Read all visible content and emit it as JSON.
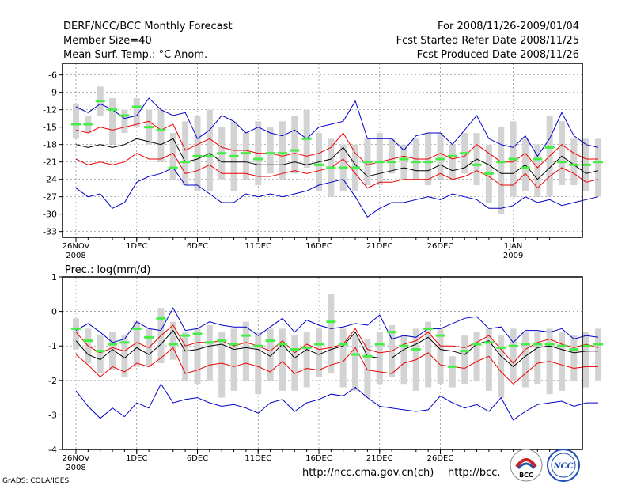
{
  "header": {
    "line1_left": "DERF/NCC/BCC Monthly Forecast",
    "line2_left": "Member Size=40",
    "line3_left": "Mean Surf. Temp.: °C Anom.",
    "line1_right": "For 2008/11/26-2009/01/04",
    "line2_right": "Fcst Started Refer Date 2008/11/25",
    "line3_right": "Fcst Produced Date 2008/11/26"
  },
  "footer": {
    "credit": "GrADS: COLA/IGES",
    "url1": "http://ncc.cma.gov.cn(ch)",
    "url2": "http://bcc.",
    "logo1_label": "BCC",
    "logo2_label": "NCC"
  },
  "colors": {
    "box": "#d3d3d3",
    "mean": "#44ee44",
    "median": "#000000",
    "quartile": "#ee0000",
    "extreme": "#0000cc",
    "grid": "#888888"
  },
  "chart_data": [
    {
      "type": "line",
      "title": "Mean Surf. Temp.: °C Anom.",
      "ylim": [
        -34,
        -4
      ],
      "yticks": [
        -6,
        -9,
        -12,
        -15,
        -18,
        -21,
        -24,
        -27,
        -30,
        -33
      ],
      "xtick_labels": [
        {
          "day": 1,
          "text": "26NOV",
          "sub": "2008"
        },
        {
          "day": 6,
          "text": "1DEC",
          "sub": ""
        },
        {
          "day": 11,
          "text": "6DEC",
          "sub": ""
        },
        {
          "day": 16,
          "text": "11DEC",
          "sub": ""
        },
        {
          "day": 21,
          "text": "16DEC",
          "sub": ""
        },
        {
          "day": 26,
          "text": "21DEC",
          "sub": ""
        },
        {
          "day": 31,
          "text": "26DEC",
          "sub": ""
        },
        {
          "day": 37,
          "text": "1JAN",
          "sub": "2009"
        }
      ],
      "x_days": 40,
      "series": [
        {
          "name": "upper-extreme",
          "values": [
            -11.5,
            -12.5,
            -11,
            -12,
            -13.5,
            -13,
            -10,
            -12,
            -13,
            -12.5,
            -17,
            -15.5,
            -13,
            -14,
            -16,
            -15,
            -16,
            -16.5,
            -15.5,
            -17,
            -15,
            -14.5,
            -14,
            -10.5,
            -17,
            -17,
            -17,
            -19,
            -16.5,
            -16,
            -16,
            -18,
            -15.5,
            -13,
            -17,
            -18,
            -18.5,
            -16.5,
            -20,
            -17,
            -12.5,
            -16.5,
            -18,
            -18.5
          ]
        },
        {
          "name": "upper-quartile",
          "values": [
            -15.5,
            -16,
            -15,
            -15.5,
            -15,
            -14.5,
            -14,
            -15.5,
            -14.5,
            -19,
            -18,
            -17,
            -18.5,
            -19,
            -19,
            -19.5,
            -19.5,
            -20,
            -19.5,
            -20,
            -19.5,
            -18.5,
            -16,
            -19.5,
            -21.5,
            -21,
            -20.5,
            -20,
            -20.5,
            -20.5,
            -19.5,
            -20.5,
            -20,
            -18,
            -19.5,
            -21,
            -21,
            -19.5,
            -22,
            -20,
            -18,
            -19.5,
            -20.5,
            -20.5
          ]
        },
        {
          "name": "median",
          "values": [
            -18,
            -18.5,
            -18,
            -18.5,
            -18,
            -17,
            -17.5,
            -18,
            -17,
            -21,
            -20.5,
            -19.5,
            -21,
            -21,
            -21,
            -21.5,
            -21.5,
            -21.5,
            -21,
            -21.5,
            -21,
            -20.5,
            -18.5,
            -21.5,
            -23.5,
            -23,
            -22.5,
            -22,
            -22.5,
            -22.5,
            -21.5,
            -22.5,
            -22,
            -20.5,
            -21.5,
            -23,
            -23,
            -21.5,
            -24,
            -22,
            -20,
            -21.5,
            -23,
            -22.5
          ]
        },
        {
          "name": "lower-quartile",
          "values": [
            -20.5,
            -21.5,
            -21,
            -21.5,
            -21,
            -19.5,
            -20.5,
            -20.5,
            -19.5,
            -23,
            -22.5,
            -21.5,
            -23,
            -23,
            -23,
            -23.5,
            -23.5,
            -23,
            -22.5,
            -23,
            -22.5,
            -22,
            -20.5,
            -23,
            -25.5,
            -24.5,
            -24.5,
            -24,
            -24,
            -24,
            -23,
            -24,
            -23.5,
            -22.5,
            -23.5,
            -25,
            -25,
            -23,
            -25.5,
            -23.5,
            -22,
            -23,
            -24.5,
            -24
          ]
        },
        {
          "name": "lower-extreme",
          "values": [
            -25.5,
            -27,
            -26.5,
            -29,
            -28,
            -24.5,
            -23.5,
            -23,
            -22,
            -25,
            -25,
            -26.5,
            -28,
            -28,
            -26.5,
            -27,
            -26.5,
            -27,
            -26.5,
            -26,
            -25,
            -24.5,
            -24,
            -27,
            -30.5,
            -29,
            -28,
            -28,
            -27.5,
            -27,
            -27.5,
            -26.5,
            -27,
            -27.5,
            -29,
            -29,
            -28.5,
            -27,
            -28,
            -27.5,
            -28.5,
            -28,
            -27.5,
            -27
          ]
        },
        {
          "name": "mean",
          "values": [
            -14.5,
            -14.5,
            -10.5,
            -12,
            -13,
            -11.5,
            -15,
            -15.5,
            -22,
            -21,
            -20,
            -20,
            -19.5,
            -20,
            -19.5,
            -20.5,
            -19.5,
            -19.5,
            -19,
            -17,
            -21.5,
            -22,
            -22,
            -22,
            -21,
            -21,
            -21,
            -20.5,
            -21,
            -21,
            -20.5,
            -20,
            -19.5,
            -21.5,
            -23,
            -21,
            -20.5,
            -22,
            -20.5,
            -18.5,
            -21,
            -21.5,
            -21.5,
            -21
          ]
        },
        {
          "name": "box-top",
          "values": [
            -11,
            -13,
            -8,
            -10,
            -12,
            -10,
            -12,
            -12,
            -16,
            -14,
            -13,
            -12,
            -15,
            -14,
            -16,
            -14,
            -15,
            -14,
            -13,
            -12,
            -16,
            -17,
            -18,
            -18,
            -17,
            -16,
            -17,
            -18,
            -17,
            -16,
            -16,
            -18,
            -16,
            -16,
            -18,
            -15,
            -14,
            -17,
            -18,
            -13,
            -14,
            -17,
            -17,
            -17
          ]
        },
        {
          "name": "box-bottom",
          "values": [
            -17,
            -16,
            -13,
            -18,
            -16,
            -15,
            -18,
            -21,
            -24,
            -25,
            -26,
            -26,
            -24,
            -26,
            -24,
            -25,
            -23,
            -24,
            -23,
            -22,
            -26,
            -27,
            -26,
            -26,
            -25,
            -25,
            -23,
            -24,
            -24,
            -25,
            -24,
            -24,
            -23,
            -25,
            -28,
            -30,
            -27,
            -26,
            -27,
            -27,
            -25,
            -25,
            -26,
            -27
          ]
        }
      ]
    },
    {
      "type": "line",
      "title": "Prec.: log(mm/d)",
      "ylim": [
        -4,
        1
      ],
      "yticks": [
        1,
        0,
        -1,
        -2,
        -3,
        -4
      ],
      "xtick_labels": [
        {
          "day": 1,
          "text": "26NOV",
          "sub": "2008"
        },
        {
          "day": 6,
          "text": "1DEC",
          "sub": ""
        },
        {
          "day": 11,
          "text": "6DEC",
          "sub": ""
        },
        {
          "day": 16,
          "text": "11DEC",
          "sub": ""
        },
        {
          "day": 21,
          "text": "16DEC",
          "sub": ""
        },
        {
          "day": 26,
          "text": "21DEC",
          "sub": ""
        },
        {
          "day": 31,
          "text": "26DEC",
          "sub": ""
        }
      ],
      "x_days": 40,
      "series": [
        {
          "name": "upper-extreme",
          "values": [
            -0.55,
            -0.35,
            -0.6,
            -0.9,
            -0.8,
            -0.3,
            -0.5,
            -0.55,
            0.1,
            -0.55,
            -0.5,
            -0.3,
            -0.4,
            -0.45,
            -0.45,
            -0.7,
            -0.45,
            -0.2,
            -0.6,
            -0.25,
            -0.4,
            -0.5,
            -0.45,
            -0.35,
            -0.4,
            -0.1,
            -0.8,
            -0.7,
            -0.75,
            -0.5,
            -0.5,
            -0.35,
            -0.2,
            -0.15,
            -0.5,
            -0.45,
            -0.9,
            -0.55,
            -0.55,
            -0.6,
            -0.5,
            -0.8,
            -0.7,
            -0.75
          ]
        },
        {
          "name": "upper-quartile",
          "values": [
            -0.6,
            -1.0,
            -1.2,
            -1.05,
            -1.15,
            -0.9,
            -1.05,
            -0.7,
            -0.4,
            -1.0,
            -0.9,
            -0.9,
            -0.85,
            -1.0,
            -0.9,
            -1.0,
            -1.15,
            -0.85,
            -1.2,
            -0.95,
            -1.1,
            -1.05,
            -0.95,
            -0.5,
            -1.1,
            -1.2,
            -1.15,
            -0.95,
            -0.85,
            -0.6,
            -1.0,
            -1.0,
            -1.05,
            -0.9,
            -0.7,
            -1.1,
            -1.5,
            -1.1,
            -0.9,
            -0.8,
            -0.95,
            -1.05,
            -0.95,
            -1.05
          ]
        },
        {
          "name": "median",
          "values": [
            -0.85,
            -1.25,
            -1.4,
            -1.1,
            -1.35,
            -1.05,
            -1.25,
            -0.95,
            -0.55,
            -1.15,
            -1.1,
            -1.0,
            -0.95,
            -1.1,
            -1.05,
            -1.1,
            -1.3,
            -0.95,
            -1.35,
            -1.1,
            -1.25,
            -1.1,
            -1.0,
            -0.6,
            -1.3,
            -1.35,
            -1.35,
            -1.1,
            -0.95,
            -0.75,
            -1.1,
            -1.15,
            -1.25,
            -0.95,
            -0.85,
            -1.3,
            -1.6,
            -1.3,
            -1.05,
            -1.0,
            -1.1,
            -1.2,
            -1.15,
            -1.15
          ]
        },
        {
          "name": "lower-quartile",
          "values": [
            -1.25,
            -1.55,
            -1.9,
            -1.6,
            -1.75,
            -1.5,
            -1.6,
            -1.35,
            -1.05,
            -1.8,
            -1.7,
            -1.55,
            -1.5,
            -1.6,
            -1.5,
            -1.6,
            -1.75,
            -1.45,
            -1.8,
            -1.65,
            -1.7,
            -1.55,
            -1.45,
            -1.05,
            -1.7,
            -1.75,
            -1.8,
            -1.5,
            -1.4,
            -1.2,
            -1.55,
            -1.6,
            -1.65,
            -1.45,
            -1.3,
            -1.75,
            -2.1,
            -1.8,
            -1.5,
            -1.45,
            -1.55,
            -1.65,
            -1.6,
            -1.6
          ]
        },
        {
          "name": "lower-extreme",
          "values": [
            -2.3,
            -2.75,
            -3.1,
            -2.8,
            -3.05,
            -2.65,
            -2.8,
            -2.1,
            -2.65,
            -2.55,
            -2.5,
            -2.65,
            -2.75,
            -2.7,
            -2.8,
            -2.95,
            -2.65,
            -2.55,
            -2.9,
            -2.65,
            -2.55,
            -2.4,
            -2.45,
            -2.2,
            -2.5,
            -2.75,
            -2.8,
            -2.85,
            -2.9,
            -2.85,
            -2.45,
            -2.65,
            -2.8,
            -2.7,
            -2.9,
            -2.5,
            -3.15,
            -2.9,
            -2.7,
            -2.65,
            -2.6,
            -2.75,
            -2.65,
            -2.65
          ]
        },
        {
          "name": "mean",
          "values": [
            -0.5,
            -0.85,
            -1.15,
            -0.95,
            -0.9,
            -0.5,
            -0.75,
            -0.2,
            -0.95,
            -0.7,
            -0.65,
            -0.9,
            -0.85,
            -0.95,
            -0.7,
            -1.0,
            -0.85,
            -0.95,
            -1.1,
            -1.05,
            -0.95,
            -0.3,
            -0.95,
            -1.25,
            -1.3,
            -0.95,
            -0.6,
            -1.0,
            -1.1,
            -0.5,
            -0.7,
            -1.6,
            -1.15,
            -0.95,
            -0.9,
            -1.05,
            -1.0,
            -0.95,
            -0.95,
            -0.95,
            -1.0,
            -1.1,
            -1.0,
            -0.95
          ]
        },
        {
          "name": "box-top",
          "values": [
            -0.2,
            -0.5,
            -0.7,
            -0.6,
            -0.7,
            -0.3,
            -0.5,
            0.1,
            -0.3,
            -0.6,
            -0.5,
            -0.4,
            -0.6,
            -0.5,
            -0.3,
            -0.6,
            -0.5,
            -0.5,
            -0.7,
            -0.6,
            -0.5,
            0.5,
            -0.5,
            -0.7,
            -0.8,
            -0.6,
            -0.4,
            -0.7,
            -0.5,
            -0.3,
            -0.5,
            -1.3,
            -0.7,
            -0.6,
            -0.5,
            -0.7,
            -0.5,
            -0.6,
            -0.6,
            -0.5,
            -0.6,
            -0.7,
            -0.6,
            -0.5
          ]
        },
        {
          "name": "box-bottom",
          "values": [
            -1.1,
            -1.5,
            -1.8,
            -1.7,
            -1.9,
            -1.6,
            -1.6,
            -1.5,
            -1.4,
            -2.0,
            -2.1,
            -2.0,
            -2.5,
            -2.3,
            -2.0,
            -2.4,
            -2.0,
            -2.3,
            -2.3,
            -2.2,
            -1.9,
            -1.8,
            -2.2,
            -2.3,
            -2.5,
            -2.1,
            -1.9,
            -2.1,
            -2.3,
            -2.2,
            -2.1,
            -2.2,
            -2.1,
            -2.0,
            -2.3,
            -2.5,
            -2.0,
            -2.2,
            -2.1,
            -2.4,
            -2.3,
            -2.0,
            -2.2,
            -2.0
          ]
        }
      ]
    }
  ]
}
